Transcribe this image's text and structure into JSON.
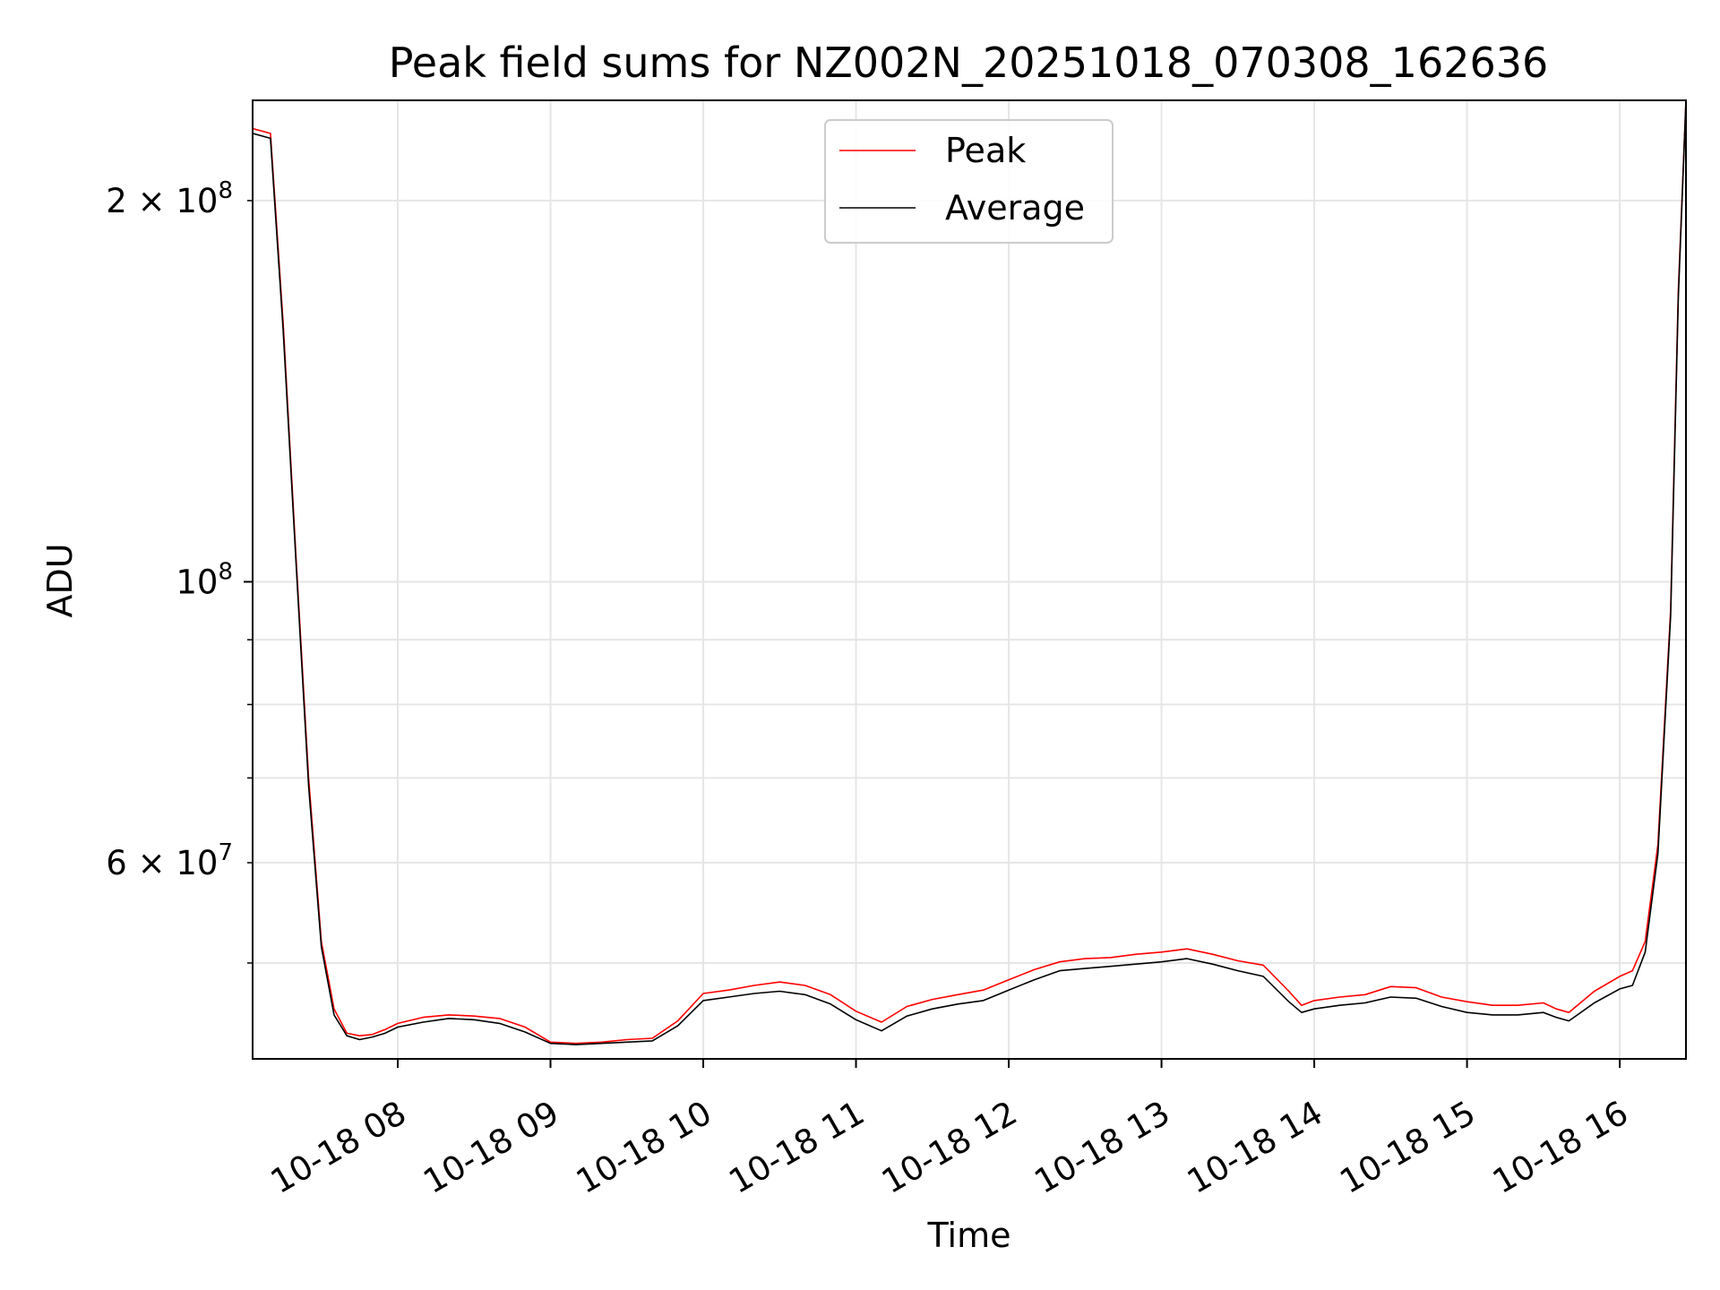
{
  "chart_data": {
    "type": "line",
    "title": "Peak field sums for NZ002N_20251018_070308_162636",
    "xlabel": "Time",
    "ylabel": "ADU",
    "yscale": "log",
    "ylim": [
      42000000,
      240000000
    ],
    "xlim": [
      "2025-10-18 07:03",
      "2025-10-18 16:26"
    ],
    "grid": true,
    "legend_position": "upper center",
    "x_ticks": [
      "10-18 08",
      "10-18 09",
      "10-18 10",
      "10-18 11",
      "10-18 12",
      "10-18 13",
      "10-18 14",
      "10-18 15",
      "10-18 16"
    ],
    "y_ticks": [
      "2 × 10^8",
      "10^8",
      "6 × 10^7"
    ],
    "x": [
      "2025-10-18 07:03",
      "2025-10-18 07:10",
      "2025-10-18 07:15",
      "2025-10-18 07:20",
      "2025-10-18 07:25",
      "2025-10-18 07:30",
      "2025-10-18 07:35",
      "2025-10-18 07:40",
      "2025-10-18 07:45",
      "2025-10-18 07:50",
      "2025-10-18 07:55",
      "2025-10-18 08:00",
      "2025-10-18 08:10",
      "2025-10-18 08:20",
      "2025-10-18 08:30",
      "2025-10-18 08:40",
      "2025-10-18 08:50",
      "2025-10-18 09:00",
      "2025-10-18 09:10",
      "2025-10-18 09:20",
      "2025-10-18 09:30",
      "2025-10-18 09:40",
      "2025-10-18 09:50",
      "2025-10-18 10:00",
      "2025-10-18 10:10",
      "2025-10-18 10:20",
      "2025-10-18 10:30",
      "2025-10-18 10:40",
      "2025-10-18 10:50",
      "2025-10-18 11:00",
      "2025-10-18 11:10",
      "2025-10-18 11:20",
      "2025-10-18 11:30",
      "2025-10-18 11:40",
      "2025-10-18 11:50",
      "2025-10-18 12:00",
      "2025-10-18 12:10",
      "2025-10-18 12:20",
      "2025-10-18 12:30",
      "2025-10-18 12:40",
      "2025-10-18 12:50",
      "2025-10-18 13:00",
      "2025-10-18 13:10",
      "2025-10-18 13:20",
      "2025-10-18 13:30",
      "2025-10-18 13:40",
      "2025-10-18 13:50",
      "2025-10-18 13:55",
      "2025-10-18 14:00",
      "2025-10-18 14:10",
      "2025-10-18 14:20",
      "2025-10-18 14:30",
      "2025-10-18 14:40",
      "2025-10-18 14:50",
      "2025-10-18 15:00",
      "2025-10-18 15:10",
      "2025-10-18 15:20",
      "2025-10-18 15:30",
      "2025-10-18 15:35",
      "2025-10-18 15:40",
      "2025-10-18 15:50",
      "2025-10-18 16:00",
      "2025-10-18 16:05",
      "2025-10-18 16:10",
      "2025-10-18 16:15",
      "2025-10-18 16:20",
      "2025-10-18 16:23",
      "2025-10-18 16:26"
    ],
    "series": [
      {
        "name": "Peak",
        "color": "#ff0000",
        "values": [
          228000000,
          226000000,
          160000000,
          105000000,
          70000000,
          52000000,
          46000000,
          44000000,
          43800000,
          43900000,
          44300000,
          44800000,
          45300000,
          45500000,
          45400000,
          45200000,
          44500000,
          43300000,
          43200000,
          43300000,
          43500000,
          43600000,
          45000000,
          47300000,
          47600000,
          48000000,
          48300000,
          48000000,
          47200000,
          45800000,
          44900000,
          46200000,
          46800000,
          47200000,
          47600000,
          48500000,
          49400000,
          50100000,
          50400000,
          50500000,
          50800000,
          51000000,
          51300000,
          50800000,
          50200000,
          49800000,
          47500000,
          46300000,
          46700000,
          47000000,
          47200000,
          47900000,
          47800000,
          47000000,
          46600000,
          46300000,
          46300000,
          46500000,
          46000000,
          45700000,
          47500000,
          48800000,
          49300000,
          52000000,
          62000000,
          95000000,
          170000000,
          240000000
        ]
      },
      {
        "name": "Average",
        "color": "#000000",
        "values": [
          226000000,
          224000000,
          158000000,
          104000000,
          69000000,
          51500000,
          45500000,
          43800000,
          43500000,
          43700000,
          44000000,
          44500000,
          44900000,
          45200000,
          45100000,
          44800000,
          44100000,
          43200000,
          43100000,
          43200000,
          43300000,
          43400000,
          44600000,
          46700000,
          47000000,
          47300000,
          47500000,
          47200000,
          46400000,
          45100000,
          44200000,
          45400000,
          46000000,
          46400000,
          46700000,
          47600000,
          48500000,
          49300000,
          49500000,
          49700000,
          49900000,
          50100000,
          50400000,
          49900000,
          49300000,
          48800000,
          46600000,
          45700000,
          46000000,
          46300000,
          46500000,
          47000000,
          46900000,
          46200000,
          45700000,
          45500000,
          45500000,
          45700000,
          45300000,
          45000000,
          46500000,
          47700000,
          48000000,
          51000000,
          61000000,
          94000000,
          168000000,
          240000000
        ]
      }
    ]
  }
}
